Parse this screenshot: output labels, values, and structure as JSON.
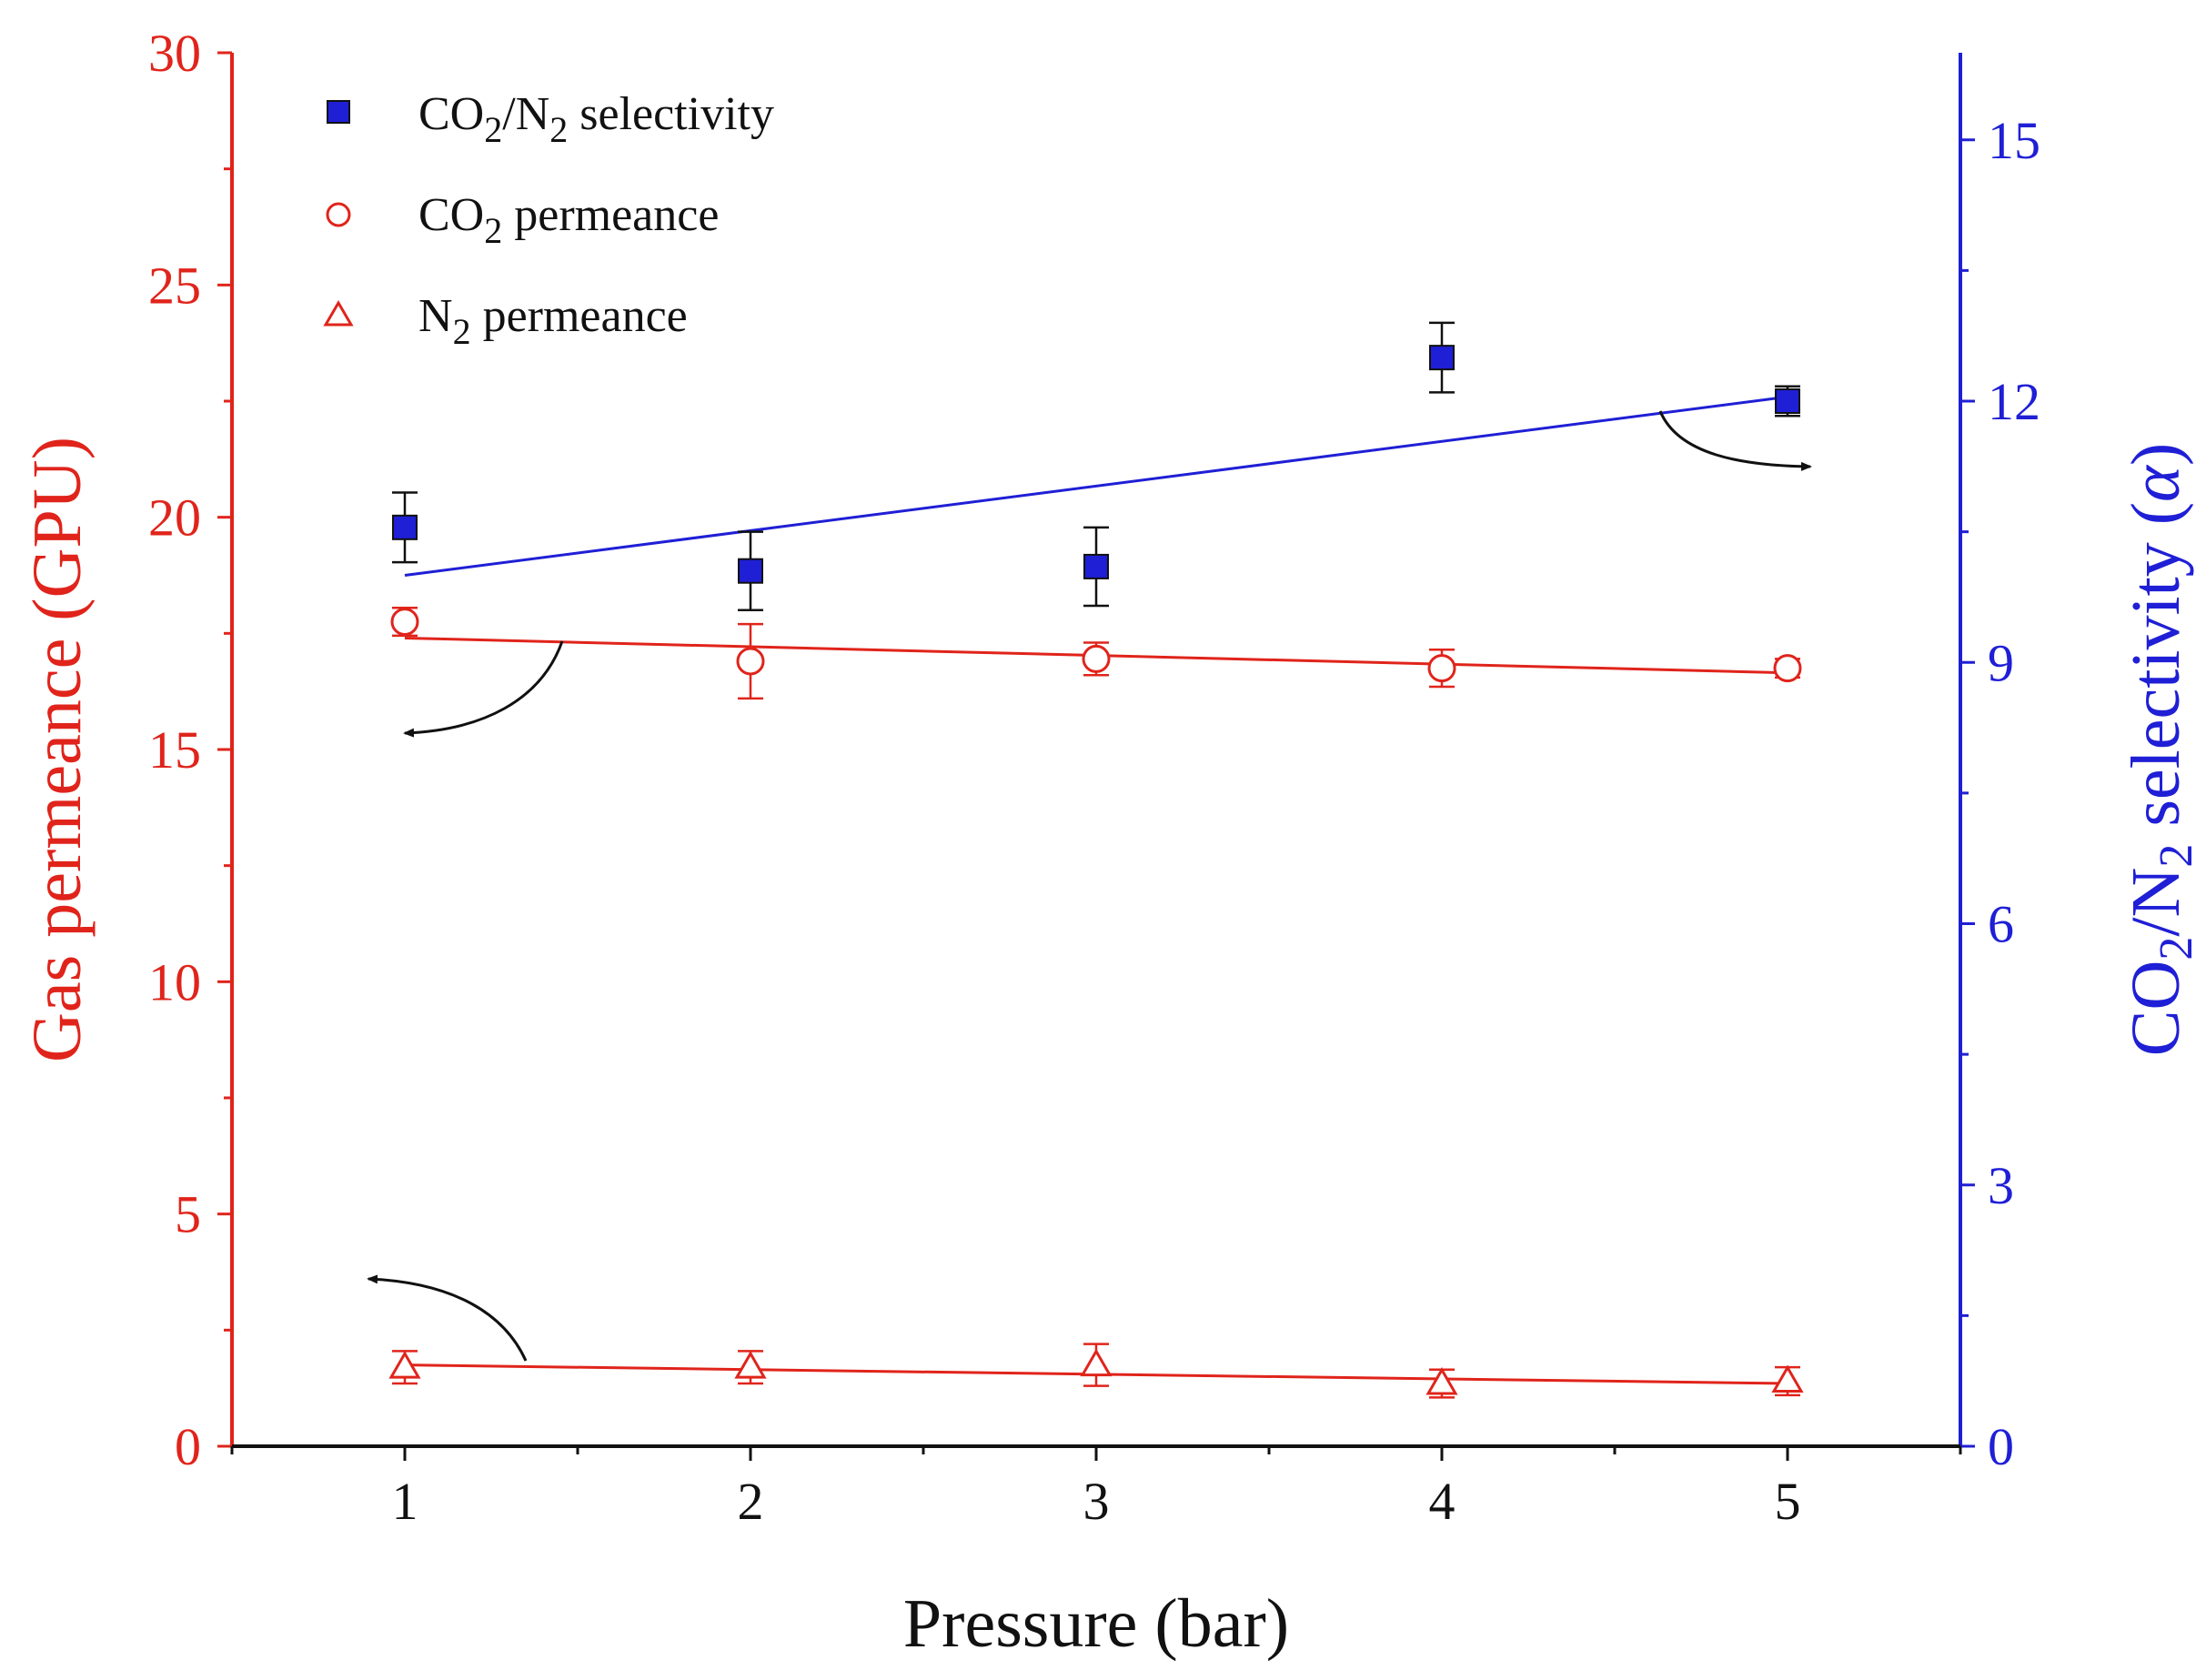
{
  "chart_data": {
    "type": "scatter",
    "xlabel": "Pressure (bar)",
    "ylabel_left": "Gas permeance (GPU)",
    "ylabel_right_parts": [
      "CO",
      "2",
      "/N",
      "2",
      " selectivity (",
      "α",
      ")"
    ],
    "xlim": [
      0.5,
      5.5
    ],
    "xticks": [
      1,
      2,
      3,
      4,
      5
    ],
    "ylim_left": [
      0,
      30
    ],
    "yticks_left": [
      0,
      5,
      10,
      15,
      20,
      25,
      30
    ],
    "ylim_right": [
      0,
      16
    ],
    "yticks_right": [
      0,
      3,
      6,
      9,
      12,
      15
    ],
    "grid": false,
    "legend_position": "top-left",
    "series": [
      {
        "name": "CO2/N2 selectivity",
        "legend_parts": [
          "CO",
          "2",
          "/N",
          "2",
          " selectivity"
        ],
        "axis": "right",
        "marker": "filled-square",
        "color": "#1f1fd6",
        "x": [
          1,
          2,
          3,
          4,
          5
        ],
        "values": [
          10.55,
          10.05,
          10.1,
          12.5,
          12.0
        ],
        "errors": [
          0.4,
          0.45,
          0.45,
          0.4,
          0.17
        ],
        "fit_line": [
          10.0,
          12.05
        ]
      },
      {
        "name": "CO2 permeance",
        "legend_parts": [
          "CO",
          "2",
          " permeance",
          "",
          ""
        ],
        "axis": "left",
        "marker": "open-circle",
        "color": "#e0241b",
        "x": [
          1,
          2,
          3,
          4,
          5
        ],
        "values": [
          17.75,
          16.9,
          16.95,
          16.75,
          16.75
        ],
        "errors": [
          0.3,
          0.8,
          0.35,
          0.4,
          0.2
        ],
        "fit_line": [
          17.4,
          16.65
        ]
      },
      {
        "name": "N2 permeance",
        "legend_parts": [
          "N",
          "2",
          " permeance",
          "",
          ""
        ],
        "axis": "left",
        "marker": "open-triangle",
        "color": "#e0241b",
        "x": [
          1,
          2,
          3,
          4,
          5
        ],
        "values": [
          1.7,
          1.7,
          1.75,
          1.35,
          1.4
        ],
        "errors": [
          0.35,
          0.35,
          0.45,
          0.3,
          0.3
        ],
        "fit_line": [
          1.75,
          1.35
        ]
      }
    ],
    "annotations": [
      {
        "type": "arrow",
        "series": "CO2/N2 selectivity",
        "points_to": "right axis"
      },
      {
        "type": "arrow",
        "series": "CO2 permeance",
        "points_to": "left axis"
      },
      {
        "type": "arrow",
        "series": "N2 permeance",
        "points_to": "left axis"
      }
    ]
  }
}
